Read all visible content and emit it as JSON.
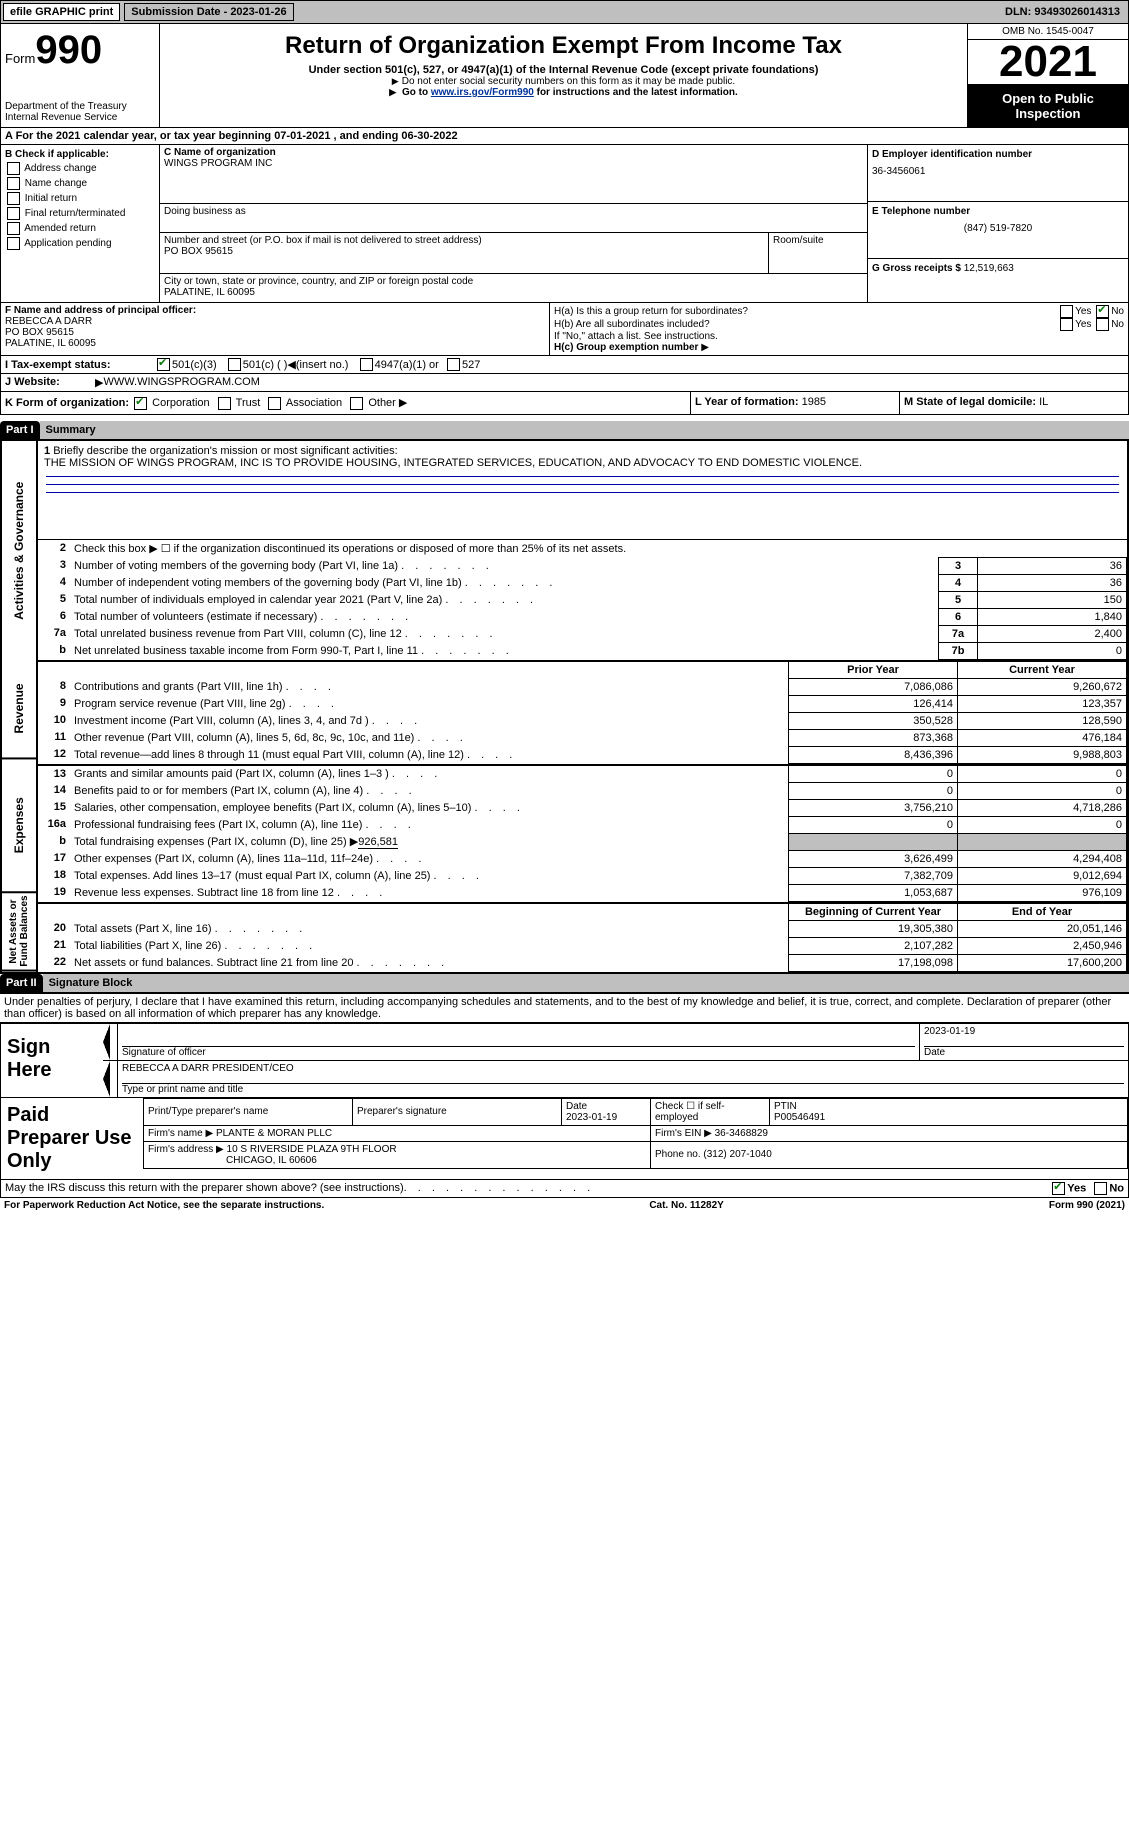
{
  "topbar": {
    "efile": "efile GRAPHIC print",
    "submission_label": "Submission Date - 2023-01-26",
    "dln_label": "DLN: 93493026014313"
  },
  "header": {
    "form_word": "Form",
    "form_num": "990",
    "dept": "Department of the Treasury\nInternal Revenue Service",
    "title": "Return of Organization Exempt From Income Tax",
    "subtitle": "Under section 501(c), 527, or 4947(a)(1) of the Internal Revenue Code (except private foundations)",
    "note1": "Do not enter social security numbers on this form as it may be made public.",
    "note2_pre": "Go to ",
    "note2_link": "www.irs.gov/Form990",
    "note2_post": " for instructions and the latest information.",
    "omb": "OMB No. 1545-0047",
    "year": "2021",
    "public": "Open to Public Inspection"
  },
  "rowA": "A For the 2021 calendar year, or tax year beginning 07-01-2021   , and ending 06-30-2022",
  "sectionB": {
    "header": "B Check if applicable:",
    "items": [
      "Address change",
      "Name change",
      "Initial return",
      "Final return/terminated",
      "Amended return",
      "Application pending"
    ],
    "name_label": "C Name of organization",
    "name_val": "WINGS PROGRAM INC",
    "dba_label": "Doing business as",
    "street_label": "Number and street (or P.O. box if mail is not delivered to street address)",
    "street_val": "PO BOX 95615",
    "room_label": "Room/suite",
    "city_label": "City or town, state or province, country, and ZIP or foreign postal code",
    "city_val": "PALATINE, IL  60095",
    "ein_label": "D Employer identification number",
    "ein_val": "36-3456061",
    "phone_label": "E Telephone number",
    "phone_val": "(847) 519-7820",
    "gross_label": "G Gross receipts $",
    "gross_val": "12,519,663"
  },
  "sectionF": {
    "label": "F Name and address of principal officer:",
    "name": "REBECCA A DARR",
    "street": "PO BOX 95615",
    "city": "PALATINE, IL  60095"
  },
  "sectionH": {
    "a": "H(a)  Is this a group return for subordinates?",
    "b": "H(b)  Are all subordinates included?",
    "b_note": "If \"No,\" attach a list. See instructions.",
    "c_label": "H(c)  Group exemption number",
    "yes": "Yes",
    "no": "No"
  },
  "sectionI": {
    "label": "I  Tax-exempt status:",
    "opt1": "501(c)(3)",
    "opt2": "501(c) (  )",
    "opt2_insert": "(insert no.)",
    "opt3": "4947(a)(1) or",
    "opt4": "527"
  },
  "sectionJ": {
    "label": "J  Website:",
    "val": "WWW.WINGSPROGRAM.COM"
  },
  "sectionK": {
    "label": "K Form of organization:",
    "corp": "Corporation",
    "trust": "Trust",
    "assoc": "Association",
    "other": "Other"
  },
  "sectionL": {
    "label": "L Year of formation:",
    "val": "1985"
  },
  "sectionM": {
    "label": "M State of legal domicile:",
    "val": "IL"
  },
  "parts": {
    "p1": "Part I",
    "p1_title": "Summary",
    "p2": "Part II",
    "p2_title": "Signature Block"
  },
  "vtabs": {
    "a": "Activities & Governance",
    "b": "Revenue",
    "c": "Expenses",
    "d": "Net Assets or Fund Balances"
  },
  "line1": {
    "num": "1",
    "label": "Briefly describe the organization's mission or most significant activities:",
    "text": "THE MISSION OF WINGS PROGRAM, INC IS TO PROVIDE HOUSING, INTEGRATED SERVICES, EDUCATION, AND ADVOCACY TO END DOMESTIC VIOLENCE."
  },
  "lines_gov": [
    {
      "n": "2",
      "l": "Check this box ▶ ☐  if the organization discontinued its operations or disposed of more than 25% of its net assets.",
      "box": "",
      "val": ""
    },
    {
      "n": "3",
      "l": "Number of voting members of the governing body (Part VI, line 1a)",
      "box": "3",
      "val": "36"
    },
    {
      "n": "4",
      "l": "Number of independent voting members of the governing body (Part VI, line 1b)",
      "box": "4",
      "val": "36"
    },
    {
      "n": "5",
      "l": "Total number of individuals employed in calendar year 2021 (Part V, line 2a)",
      "box": "5",
      "val": "150"
    },
    {
      "n": "6",
      "l": "Total number of volunteers (estimate if necessary)",
      "box": "6",
      "val": "1,840"
    },
    {
      "n": "7a",
      "l": "Total unrelated business revenue from Part VIII, column (C), line 12",
      "box": "7a",
      "val": "2,400"
    },
    {
      "n": "b",
      "l": "Net unrelated business taxable income from Form 990-T, Part I, line 11",
      "box": "7b",
      "val": "0"
    }
  ],
  "col_headers": {
    "prior": "Prior Year",
    "curr": "Current Year",
    "begin": "Beginning of Current Year",
    "end": "End of Year"
  },
  "lines_rev": [
    {
      "n": "8",
      "l": "Contributions and grants (Part VIII, line 1h)",
      "p": "7,086,086",
      "c": "9,260,672"
    },
    {
      "n": "9",
      "l": "Program service revenue (Part VIII, line 2g)",
      "p": "126,414",
      "c": "123,357"
    },
    {
      "n": "10",
      "l": "Investment income (Part VIII, column (A), lines 3, 4, and 7d )",
      "p": "350,528",
      "c": "128,590"
    },
    {
      "n": "11",
      "l": "Other revenue (Part VIII, column (A), lines 5, 6d, 8c, 9c, 10c, and 11e)",
      "p": "873,368",
      "c": "476,184"
    },
    {
      "n": "12",
      "l": "Total revenue—add lines 8 through 11 (must equal Part VIII, column (A), line 12)",
      "p": "8,436,396",
      "c": "9,988,803"
    }
  ],
  "lines_exp": [
    {
      "n": "13",
      "l": "Grants and similar amounts paid (Part IX, column (A), lines 1–3 )",
      "p": "0",
      "c": "0"
    },
    {
      "n": "14",
      "l": "Benefits paid to or for members (Part IX, column (A), line 4)",
      "p": "0",
      "c": "0"
    },
    {
      "n": "15",
      "l": "Salaries, other compensation, employee benefits (Part IX, column (A), lines 5–10)",
      "p": "3,756,210",
      "c": "4,718,286"
    },
    {
      "n": "16a",
      "l": "Professional fundraising fees (Part IX, column (A), line 11e)",
      "p": "0",
      "c": "0"
    }
  ],
  "line16b": {
    "n": "b",
    "l": "Total fundraising expenses (Part IX, column (D), line 25) ▶",
    "val": "926,581"
  },
  "lines_exp2": [
    {
      "n": "17",
      "l": "Other expenses (Part IX, column (A), lines 11a–11d, 11f–24e)",
      "p": "3,626,499",
      "c": "4,294,408"
    },
    {
      "n": "18",
      "l": "Total expenses. Add lines 13–17 (must equal Part IX, column (A), line 25)",
      "p": "7,382,709",
      "c": "9,012,694"
    },
    {
      "n": "19",
      "l": "Revenue less expenses. Subtract line 18 from line 12",
      "p": "1,053,687",
      "c": "976,109"
    }
  ],
  "lines_net": [
    {
      "n": "20",
      "l": "Total assets (Part X, line 16)",
      "p": "19,305,380",
      "c": "20,051,146"
    },
    {
      "n": "21",
      "l": "Total liabilities (Part X, line 26)",
      "p": "2,107,282",
      "c": "2,450,946"
    },
    {
      "n": "22",
      "l": "Net assets or fund balances. Subtract line 21 from line 20",
      "p": "17,198,098",
      "c": "17,600,200"
    }
  ],
  "sig": {
    "declare": "Under penalties of perjury, I declare that I have examined this return, including accompanying schedules and statements, and to the best of my knowledge and belief, it is true, correct, and complete. Declaration of preparer (other than officer) is based on all information of which preparer has any knowledge.",
    "sign_here": "Sign Here",
    "sig_officer": "Signature of officer",
    "date": "Date",
    "sig_date": "2023-01-19",
    "name_title": "REBECCA A DARR  PRESIDENT/CEO",
    "type_name": "Type or print name and title"
  },
  "prep": {
    "title": "Paid Preparer Use Only",
    "print_name_label": "Print/Type preparer's name",
    "sig_label": "Preparer's signature",
    "date_label": "Date",
    "date_val": "2023-01-19",
    "check_label": "Check ☐ if self-employed",
    "ptin_label": "PTIN",
    "ptin_val": "P00546491",
    "firm_name_label": "Firm's name  ▶",
    "firm_name": "PLANTE & MORAN PLLC",
    "firm_ein_label": "Firm's EIN ▶",
    "firm_ein": "36-3468829",
    "firm_addr_label": "Firm's address ▶",
    "firm_addr1": "10 S RIVERSIDE PLAZA 9TH FLOOR",
    "firm_addr2": "CHICAGO, IL  60606",
    "phone_label": "Phone no.",
    "phone": "(312) 207-1040"
  },
  "footer": {
    "discuss": "May the IRS discuss this return with the preparer shown above? (see instructions)",
    "yes": "Yes",
    "no": "No",
    "paperwork": "For Paperwork Reduction Act Notice, see the separate instructions.",
    "cat": "Cat. No. 11282Y",
    "form": "Form 990 (2021)"
  }
}
